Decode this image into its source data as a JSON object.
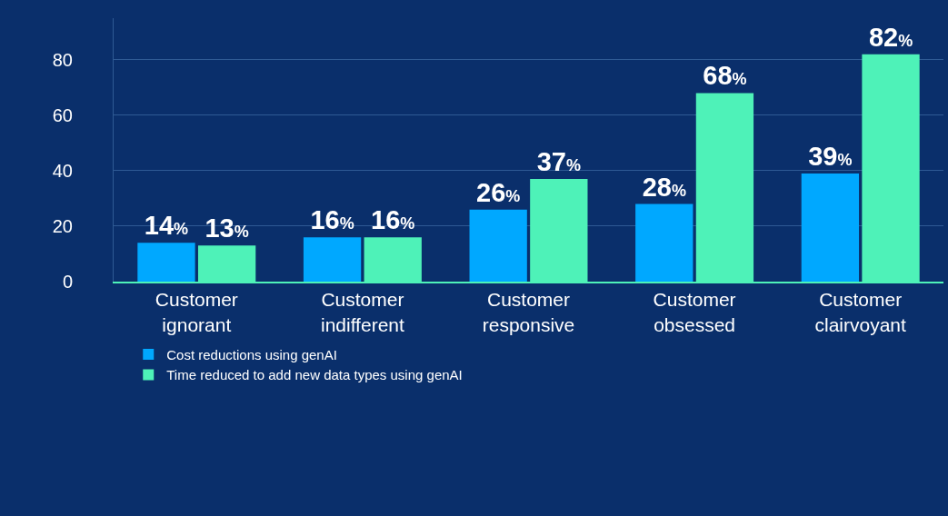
{
  "chart_data": {
    "type": "bar",
    "categories": [
      "Customer ignorant",
      "Customer indifferent",
      "Customer responsive",
      "Customer obsessed",
      "Customer clairvoyant"
    ],
    "series": [
      {
        "name": "Cost reductions using genAI",
        "color": "#00a8ff",
        "values": [
          14,
          16,
          26,
          28,
          39
        ],
        "value_labels": [
          "14%",
          "16%",
          "26%",
          "28%",
          "39%"
        ]
      },
      {
        "name": "Time reduced to add new data types using genAI",
        "color": "#4ef2b8",
        "values": [
          13,
          16,
          37,
          68,
          82
        ],
        "value_labels": [
          "13%",
          "16%",
          "37%",
          "68%",
          "82%"
        ]
      }
    ],
    "ylim": [
      0,
      95
    ],
    "yticks": [
      0,
      20,
      40,
      60,
      80
    ],
    "grid": "y",
    "legend": "bottom left"
  }
}
